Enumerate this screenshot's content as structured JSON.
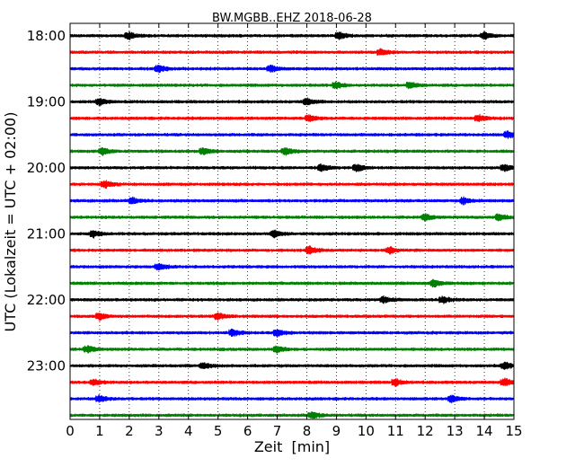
{
  "chart_data": {
    "type": "line",
    "title": "BW.MGBB..EHZ 2018-06-28",
    "xlabel": "Zeit  [min]",
    "ylabel": "UTC (Lokalzeit = UTC + 02:00)",
    "xlim": [
      0,
      15
    ],
    "x_ticks": [
      "0",
      "1",
      "2",
      "3",
      "4",
      "5",
      "6",
      "7",
      "8",
      "9",
      "10",
      "11",
      "12",
      "13",
      "14",
      "15"
    ],
    "y_tick_labels": [
      "18:00",
      "19:00",
      "20:00",
      "21:00",
      "22:00",
      "23:00"
    ],
    "grid": "vertical-dotted",
    "trace_interval_minutes": 15,
    "color_cycle": [
      "#000000",
      "#ff0000",
      "#0000ff",
      "#008000"
    ],
    "traces": [
      {
        "start": "18:00",
        "color": "#000000",
        "events": [
          2.0,
          9.1,
          14.0
        ]
      },
      {
        "start": "18:15",
        "color": "#ff0000",
        "events": [
          10.5
        ]
      },
      {
        "start": "18:30",
        "color": "#0000ff",
        "events": [
          3.0,
          6.8
        ]
      },
      {
        "start": "18:45",
        "color": "#008000",
        "events": [
          9.0,
          11.5
        ]
      },
      {
        "start": "19:00",
        "color": "#000000",
        "events": [
          1.0,
          8.0
        ]
      },
      {
        "start": "19:15",
        "color": "#ff0000",
        "events": [
          8.1,
          13.8
        ]
      },
      {
        "start": "19:30",
        "color": "#0000ff",
        "events": [
          14.8
        ]
      },
      {
        "start": "19:45",
        "color": "#008000",
        "events": [
          1.1,
          4.5,
          7.3
        ]
      },
      {
        "start": "20:00",
        "color": "#000000",
        "events": [
          8.5,
          9.7,
          14.7
        ]
      },
      {
        "start": "20:15",
        "color": "#ff0000",
        "events": [
          1.2
        ]
      },
      {
        "start": "20:30",
        "color": "#0000ff",
        "events": [
          2.1,
          13.3
        ]
      },
      {
        "start": "20:45",
        "color": "#008000",
        "events": [
          12.0,
          14.5
        ]
      },
      {
        "start": "21:00",
        "color": "#000000",
        "events": [
          0.8,
          6.9
        ]
      },
      {
        "start": "21:15",
        "color": "#ff0000",
        "events": [
          8.1,
          10.8
        ]
      },
      {
        "start": "21:30",
        "color": "#0000ff",
        "events": [
          3.0
        ]
      },
      {
        "start": "21:45",
        "color": "#008000",
        "events": [
          12.3
        ]
      },
      {
        "start": "22:00",
        "color": "#000000",
        "events": [
          10.6,
          12.6
        ]
      },
      {
        "start": "22:15",
        "color": "#ff0000",
        "events": [
          1.0,
          5.0
        ]
      },
      {
        "start": "22:30",
        "color": "#0000ff",
        "events": [
          5.5,
          7.0
        ]
      },
      {
        "start": "22:45",
        "color": "#008000",
        "events": [
          0.6,
          7.0
        ]
      },
      {
        "start": "23:00",
        "color": "#000000",
        "events": [
          4.5,
          14.7
        ]
      },
      {
        "start": "23:15",
        "color": "#ff0000",
        "events": [
          0.8,
          11.0,
          14.7
        ]
      },
      {
        "start": "23:30",
        "color": "#0000ff",
        "events": [
          1.0,
          12.9
        ]
      },
      {
        "start": "23:45",
        "color": "#008000",
        "events": [
          8.2
        ]
      }
    ]
  }
}
